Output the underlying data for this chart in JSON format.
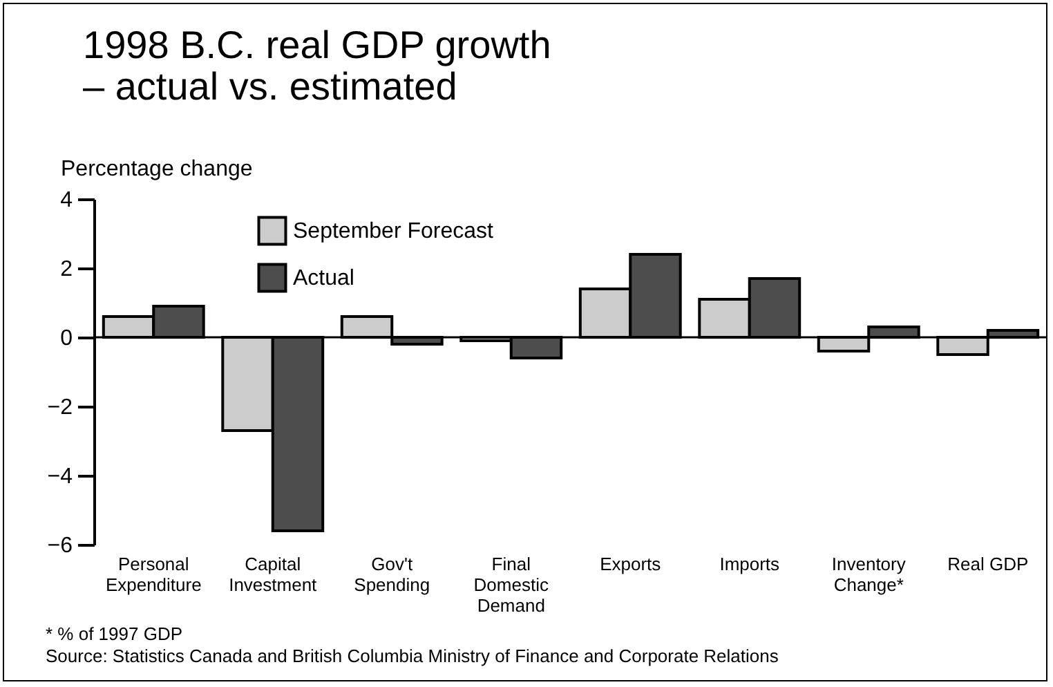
{
  "chart_data": {
    "type": "bar",
    "title": [
      "1998 B.C. real GDP growth",
      "– actual vs. estimated"
    ],
    "ylabel": "Percentage change",
    "categories": [
      "Personal Expenditure",
      "Capital Investment",
      "Gov't Spending",
      "Final Domestic Demand",
      "Exports",
      "Imports",
      "Inventory Change*",
      "Real GDP"
    ],
    "series": [
      {
        "name": "September Forecast",
        "color": "#cccccc",
        "values": [
          0.6,
          -2.7,
          0.6,
          -0.1,
          1.4,
          1.1,
          -0.4,
          -0.5
        ]
      },
      {
        "name": "Actual",
        "color": "#4d4d4d",
        "values": [
          0.9,
          -5.6,
          -0.2,
          -0.6,
          2.4,
          1.7,
          0.3,
          0.2
        ]
      }
    ],
    "ylim": [
      -6,
      4
    ],
    "yticks": [
      -6,
      -4,
      -2,
      0,
      2,
      4
    ],
    "grid": false,
    "legend": "top left",
    "ref_lines": [
      {
        "axis": "y",
        "value": 0
      }
    ],
    "annotations": [
      "* % of 1997 GDP",
      "Source: Statistics Canada and British Columbia Ministry of Finance and Corporate Relations"
    ]
  }
}
